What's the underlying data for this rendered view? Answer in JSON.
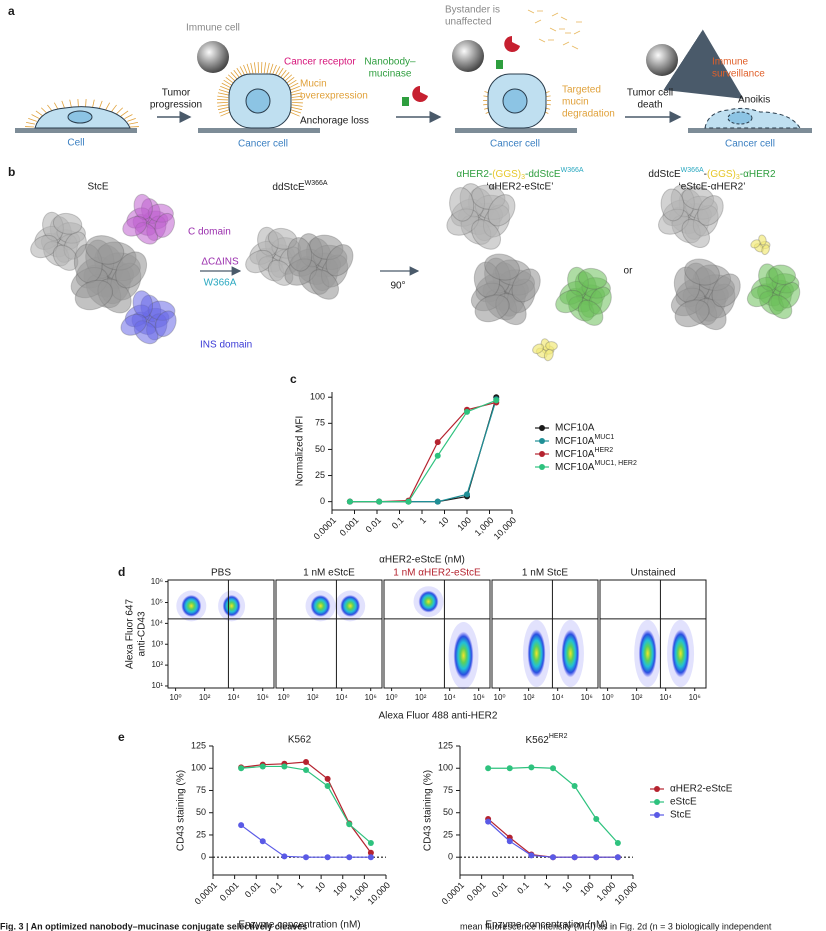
{
  "panel_a": {
    "label": "a",
    "cell": "Cell",
    "tumor_progression": [
      "Tumor",
      "progression"
    ],
    "immune_cell": "Immune cell",
    "cancer_receptor": "Cancer receptor",
    "mucin_overexpression": [
      "Mucin",
      "overexpression"
    ],
    "anchorage_loss": "Anchorage loss",
    "cancer_cell_1": "Cancer cell",
    "nanobody_mucinase": [
      "Nanobody–",
      "mucinase"
    ],
    "bystander": [
      "Bystander is",
      "unaffected"
    ],
    "targeted_degradation": [
      "Targeted",
      "mucin",
      "degradation"
    ],
    "cancer_cell_2": "Cancer cell",
    "tumor_cell_death": [
      "Tumor cell",
      "death"
    ],
    "immune_surveillance": [
      "Immune",
      "surveillance"
    ],
    "anoikis": "Anoikis",
    "cancer_cell_3": "Cancer cell"
  },
  "panel_b": {
    "label": "b",
    "stce": "StcE",
    "c_domain": "C domain",
    "ins_domain": "INS domain",
    "deletion": "ΔCΔINS",
    "mutation": "W366A",
    "dd_name": "ddStcE",
    "dd_sup": "W366A",
    "rotation": "90°",
    "construct_1": [
      "αHER2-",
      "(GGS)",
      "3",
      "-ddStcE",
      "W366A"
    ],
    "construct_1_alias": "‘αHER2-eStcE’",
    "or": "or",
    "construct_2": [
      "ddStcE",
      "W366A",
      "-",
      "(GGS)",
      "3",
      "-αHER2"
    ],
    "construct_2_alias": "‘eStcE-αHER2’"
  },
  "chart_data": [
    {
      "type": "line",
      "panel": "c",
      "xlabel": "αHER2-eStcE (nM)",
      "ylabel": "Normalized MFI",
      "xscale": "log",
      "x": [
        0.000625,
        0.0125,
        0.25,
        5,
        100,
        2000
      ],
      "xlim": [
        0.0001,
        10000
      ],
      "xticks": [
        0.0001,
        0.001,
        0.01,
        0.1,
        1,
        10,
        100,
        {
          "value": 1000,
          "label": "1,000"
        },
        {
          "value": 10000,
          "label": "10,000"
        }
      ],
      "ylim": [
        -8,
        105
      ],
      "yticks": [
        0,
        25,
        50,
        75,
        100
      ],
      "series": [
        {
          "name": "MCF10A",
          "color": "#1a1a1a",
          "values": [
            0,
            0,
            0,
            0,
            5,
            100
          ]
        },
        {
          "name": "MCF10A",
          "name_sup": "MUC1",
          "color": "#1f8f96",
          "values": [
            0,
            0,
            0,
            0,
            7,
            98
          ]
        },
        {
          "name": "MCF10A",
          "name_sup": "HER2",
          "color": "#b5232f",
          "values": [
            0,
            0,
            1,
            57,
            88,
            95
          ]
        },
        {
          "name": "MCF10A",
          "name_sup": "MUC1, HER2",
          "color": "#2ec27e",
          "values": [
            0,
            0,
            0,
            44,
            86,
            97
          ]
        }
      ]
    },
    {
      "type": "flow",
      "panel": "d",
      "xlabel": "Alexa Fluor 488 anti-HER2",
      "ylabel": [
        "Alexa Fluor 647",
        "anti-CD43"
      ],
      "xscale": "log",
      "yscale": "log",
      "titles": [
        "PBS",
        "1 nM eStcE",
        "1 nM αHER2-eStcE",
        "1 nM StcE",
        "Unstained"
      ],
      "title_colors": [
        "#1a1a1a",
        "#1a1a1a",
        "#b5232f",
        "#1a1a1a",
        "#1a1a1a"
      ],
      "xlim": [
        0.3,
        6000000
      ],
      "xticks": [
        {
          "value": 1,
          "label": "10⁰"
        },
        {
          "value": 100,
          "label": "10²"
        },
        {
          "value": 10000,
          "label": "10⁴"
        },
        {
          "value": 1000000,
          "label": "10⁶"
        }
      ],
      "ylim": [
        8,
        1200000
      ],
      "yticks": [
        {
          "value": 10,
          "label": "10¹"
        },
        {
          "value": 100,
          "label": "10²"
        },
        {
          "value": 1000,
          "label": "10³"
        },
        {
          "value": 10000,
          "label": "10⁴"
        },
        {
          "value": 100000,
          "label": "10⁵"
        },
        {
          "value": 1000000,
          "label": "10⁶"
        }
      ]
    },
    {
      "type": "line",
      "panel": "e",
      "title": "K562",
      "xlabel": "Enzyme concentration (nM)",
      "ylabel": "CD43 staining (%)",
      "xscale": "log",
      "x": [
        0.002,
        0.02,
        0.2,
        2,
        20,
        200,
        2000
      ],
      "reference_line": 0,
      "xlim": [
        0.0001,
        10000
      ],
      "xticks": [
        0.0001,
        0.001,
        0.01,
        0.1,
        1,
        10,
        100,
        {
          "value": 1000,
          "label": "1,000"
        },
        {
          "value": 10000,
          "label": "10,000"
        }
      ],
      "ylim": [
        -20,
        125
      ],
      "yticks": [
        0,
        25,
        50,
        75,
        100,
        125
      ],
      "series": [
        {
          "name": "αHER2-eStcE",
          "color": "#b5232f",
          "values": [
            101,
            104,
            105,
            107,
            88,
            38,
            5
          ]
        },
        {
          "name": "eStcE",
          "color": "#2ec27e",
          "values": [
            100,
            102,
            102,
            98,
            80,
            37,
            16
          ]
        },
        {
          "name": "StcE",
          "color": "#5a5ae6",
          "values": [
            36,
            18,
            1,
            0,
            0,
            0,
            0
          ]
        }
      ]
    },
    {
      "type": "line",
      "panel": "e",
      "title": "K562",
      "title_sup": "HER2",
      "xlabel": "Enzyme concentration (nM)",
      "ylabel": "CD43 staining (%)",
      "xscale": "log",
      "legend": "right",
      "x": [
        0.002,
        0.02,
        0.2,
        2,
        20,
        200,
        2000
      ],
      "reference_line": 0,
      "xlim": [
        0.0001,
        10000
      ],
      "xticks": [
        0.0001,
        0.001,
        0.01,
        0.1,
        1,
        10,
        100,
        {
          "value": 1000,
          "label": "1,000"
        },
        {
          "value": 10000,
          "label": "10,000"
        }
      ],
      "ylim": [
        -20,
        125
      ],
      "yticks": [
        0,
        25,
        50,
        75,
        100,
        125
      ],
      "series": [
        {
          "name": "αHER2-eStcE",
          "color": "#b5232f",
          "values": [
            43,
            22,
            3,
            0,
            0,
            0,
            0
          ]
        },
        {
          "name": "eStcE",
          "color": "#2ec27e",
          "values": [
            100,
            100,
            101,
            100,
            80,
            43,
            16
          ]
        },
        {
          "name": "StcE",
          "color": "#5a5ae6",
          "values": [
            40,
            18,
            2,
            0,
            0,
            0,
            0
          ]
        }
      ]
    }
  ],
  "panel_labels": {
    "c": "c",
    "d": "d",
    "e": "e"
  },
  "caption": {
    "left": "Fig. 3 | An optimized nanobody–mucinase conjugate selectively cleaves",
    "right": "mean fluorescence intensity (MFI) as in Fig. 2d (n = 3 biologically independent"
  }
}
